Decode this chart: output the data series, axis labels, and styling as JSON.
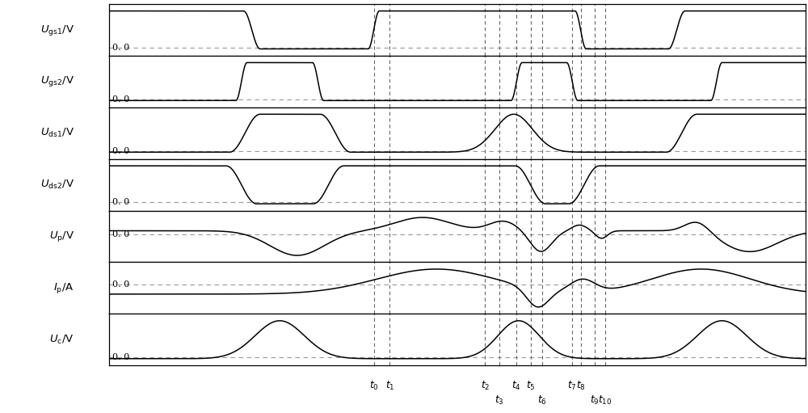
{
  "fig_width": 10.0,
  "fig_height": 5.11,
  "dpi": 100,
  "bg_color": "#ffffff",
  "signal_color": "#000000",
  "dashed_color": "#999999",
  "vline_color": "#666666",
  "ylabel_latex": [
    "$\\it{U}_{\\rm gs1}$/V",
    "$\\it{U}_{\\rm gs2}$/V",
    "$\\it{U}_{\\rm ds1}$/V",
    "$\\it{U}_{\\rm ds2}$/V",
    "$\\it{U}_{\\rm p}$/V",
    "$\\it{I}_{\\rm p}$/A",
    "$\\it{U}_{\\rm c}$/V"
  ],
  "t_labels": [
    "$t_0$",
    "$t_1$",
    "$t_2$",
    "$t_3$",
    "$t_4$",
    "$t_5$",
    "$t_6$",
    "$t_7$",
    "$t_8$",
    "$t_9$",
    "$t_{10}$"
  ],
  "t0": 0.38,
  "t1": 0.403,
  "t2": 0.54,
  "t3": 0.56,
  "t4": 0.585,
  "t5": 0.605,
  "t6": 0.622,
  "t7": 0.665,
  "t8": 0.677,
  "t9": 0.697,
  "t10": 0.712,
  "upper_idx": [
    0,
    1,
    2,
    4,
    5,
    7,
    8
  ],
  "lower_idx": [
    3,
    6,
    9,
    10
  ]
}
